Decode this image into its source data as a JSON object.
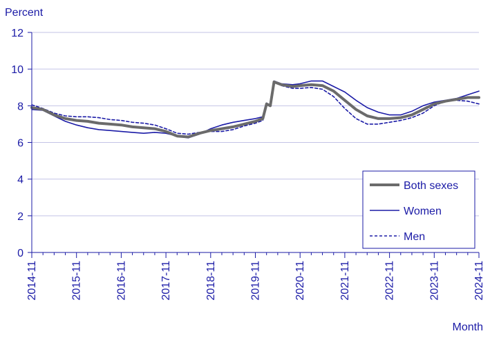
{
  "chart_data": {
    "type": "line",
    "ylabel": "Percent",
    "xlabel": "Month",
    "ylim": [
      0,
      12
    ],
    "yticks": [
      0,
      2,
      4,
      6,
      8,
      10,
      12
    ],
    "xlim": [
      "2014-11",
      "2024-11"
    ],
    "xtick_labels": [
      "2014-11",
      "2015-11",
      "2016-11",
      "2017-11",
      "2018-11",
      "2019-11",
      "2020-11",
      "2021-11",
      "2022-11",
      "2023-11",
      "2024-11"
    ],
    "grid": true,
    "legend_position": "bottom-right",
    "series": [
      {
        "name": "Both sexes",
        "color": "#6b6b6b",
        "style": "solid-thick",
        "points": [
          [
            "2014-11",
            7.9
          ],
          [
            "2015-02",
            7.8
          ],
          [
            "2015-05",
            7.5
          ],
          [
            "2015-08",
            7.3
          ],
          [
            "2015-11",
            7.2
          ],
          [
            "2016-02",
            7.15
          ],
          [
            "2016-05",
            7.05
          ],
          [
            "2016-08",
            7.0
          ],
          [
            "2016-11",
            6.95
          ],
          [
            "2017-02",
            6.85
          ],
          [
            "2017-05",
            6.8
          ],
          [
            "2017-08",
            6.75
          ],
          [
            "2017-11",
            6.6
          ],
          [
            "2018-02",
            6.35
          ],
          [
            "2018-05",
            6.3
          ],
          [
            "2018-08",
            6.5
          ],
          [
            "2018-11",
            6.65
          ],
          [
            "2019-02",
            6.75
          ],
          [
            "2019-05",
            6.85
          ],
          [
            "2019-08",
            7.0
          ],
          [
            "2019-11",
            7.15
          ],
          [
            "2020-01",
            7.3
          ],
          [
            "2020-02",
            8.1
          ],
          [
            "2020-03",
            8.0
          ],
          [
            "2020-04",
            9.3
          ],
          [
            "2020-06",
            9.15
          ],
          [
            "2020-09",
            9.05
          ],
          [
            "2020-11",
            9.1
          ],
          [
            "2021-02",
            9.15
          ],
          [
            "2021-05",
            9.1
          ],
          [
            "2021-08",
            8.8
          ],
          [
            "2021-11",
            8.3
          ],
          [
            "2022-02",
            7.8
          ],
          [
            "2022-05",
            7.45
          ],
          [
            "2022-08",
            7.3
          ],
          [
            "2022-11",
            7.3
          ],
          [
            "2023-02",
            7.35
          ],
          [
            "2023-05",
            7.5
          ],
          [
            "2023-08",
            7.8
          ],
          [
            "2023-11",
            8.1
          ],
          [
            "2024-02",
            8.25
          ],
          [
            "2024-05",
            8.35
          ],
          [
            "2024-08",
            8.45
          ],
          [
            "2024-11",
            8.45
          ]
        ]
      },
      {
        "name": "Women",
        "color": "#1a1aa6",
        "style": "solid-thin",
        "points": [
          [
            "2014-11",
            7.8
          ],
          [
            "2015-02",
            7.75
          ],
          [
            "2015-05",
            7.45
          ],
          [
            "2015-08",
            7.15
          ],
          [
            "2015-11",
            6.95
          ],
          [
            "2016-02",
            6.8
          ],
          [
            "2016-05",
            6.7
          ],
          [
            "2016-08",
            6.65
          ],
          [
            "2016-11",
            6.6
          ],
          [
            "2017-02",
            6.55
          ],
          [
            "2017-05",
            6.5
          ],
          [
            "2017-08",
            6.55
          ],
          [
            "2017-11",
            6.5
          ],
          [
            "2018-02",
            6.35
          ],
          [
            "2018-05",
            6.25
          ],
          [
            "2018-08",
            6.45
          ],
          [
            "2018-11",
            6.75
          ],
          [
            "2019-02",
            6.95
          ],
          [
            "2019-05",
            7.1
          ],
          [
            "2019-08",
            7.2
          ],
          [
            "2019-11",
            7.3
          ],
          [
            "2020-01",
            7.4
          ],
          [
            "2020-02",
            8.15
          ],
          [
            "2020-03",
            8.0
          ],
          [
            "2020-04",
            9.35
          ],
          [
            "2020-06",
            9.2
          ],
          [
            "2020-09",
            9.15
          ],
          [
            "2020-11",
            9.2
          ],
          [
            "2021-02",
            9.35
          ],
          [
            "2021-05",
            9.35
          ],
          [
            "2021-08",
            9.05
          ],
          [
            "2021-11",
            8.75
          ],
          [
            "2022-02",
            8.3
          ],
          [
            "2022-05",
            7.9
          ],
          [
            "2022-08",
            7.65
          ],
          [
            "2022-11",
            7.5
          ],
          [
            "2023-02",
            7.5
          ],
          [
            "2023-05",
            7.7
          ],
          [
            "2023-08",
            8.0
          ],
          [
            "2023-11",
            8.2
          ],
          [
            "2024-02",
            8.3
          ],
          [
            "2024-05",
            8.4
          ],
          [
            "2024-08",
            8.6
          ],
          [
            "2024-11",
            8.8
          ]
        ]
      },
      {
        "name": "Men",
        "color": "#1a1aa6",
        "style": "dashed",
        "points": [
          [
            "2014-11",
            8.05
          ],
          [
            "2015-02",
            7.85
          ],
          [
            "2015-05",
            7.6
          ],
          [
            "2015-08",
            7.45
          ],
          [
            "2015-11",
            7.4
          ],
          [
            "2016-02",
            7.4
          ],
          [
            "2016-05",
            7.35
          ],
          [
            "2016-08",
            7.25
          ],
          [
            "2016-11",
            7.2
          ],
          [
            "2017-02",
            7.1
          ],
          [
            "2017-05",
            7.05
          ],
          [
            "2017-08",
            6.95
          ],
          [
            "2017-11",
            6.75
          ],
          [
            "2018-02",
            6.5
          ],
          [
            "2018-05",
            6.45
          ],
          [
            "2018-08",
            6.55
          ],
          [
            "2018-11",
            6.6
          ],
          [
            "2019-02",
            6.6
          ],
          [
            "2019-05",
            6.7
          ],
          [
            "2019-08",
            6.9
          ],
          [
            "2019-11",
            7.05
          ],
          [
            "2020-01",
            7.2
          ],
          [
            "2020-02",
            8.1
          ],
          [
            "2020-03",
            8.0
          ],
          [
            "2020-04",
            9.3
          ],
          [
            "2020-06",
            9.1
          ],
          [
            "2020-09",
            8.95
          ],
          [
            "2020-11",
            8.95
          ],
          [
            "2021-02",
            9.0
          ],
          [
            "2021-05",
            8.9
          ],
          [
            "2021-08",
            8.5
          ],
          [
            "2021-11",
            7.85
          ],
          [
            "2022-02",
            7.3
          ],
          [
            "2022-05",
            7.0
          ],
          [
            "2022-08",
            7.0
          ],
          [
            "2022-11",
            7.1
          ],
          [
            "2023-02",
            7.2
          ],
          [
            "2023-05",
            7.35
          ],
          [
            "2023-08",
            7.6
          ],
          [
            "2023-11",
            8.0
          ],
          [
            "2024-02",
            8.25
          ],
          [
            "2024-05",
            8.3
          ],
          [
            "2024-08",
            8.25
          ],
          [
            "2024-11",
            8.1
          ]
        ]
      }
    ]
  }
}
